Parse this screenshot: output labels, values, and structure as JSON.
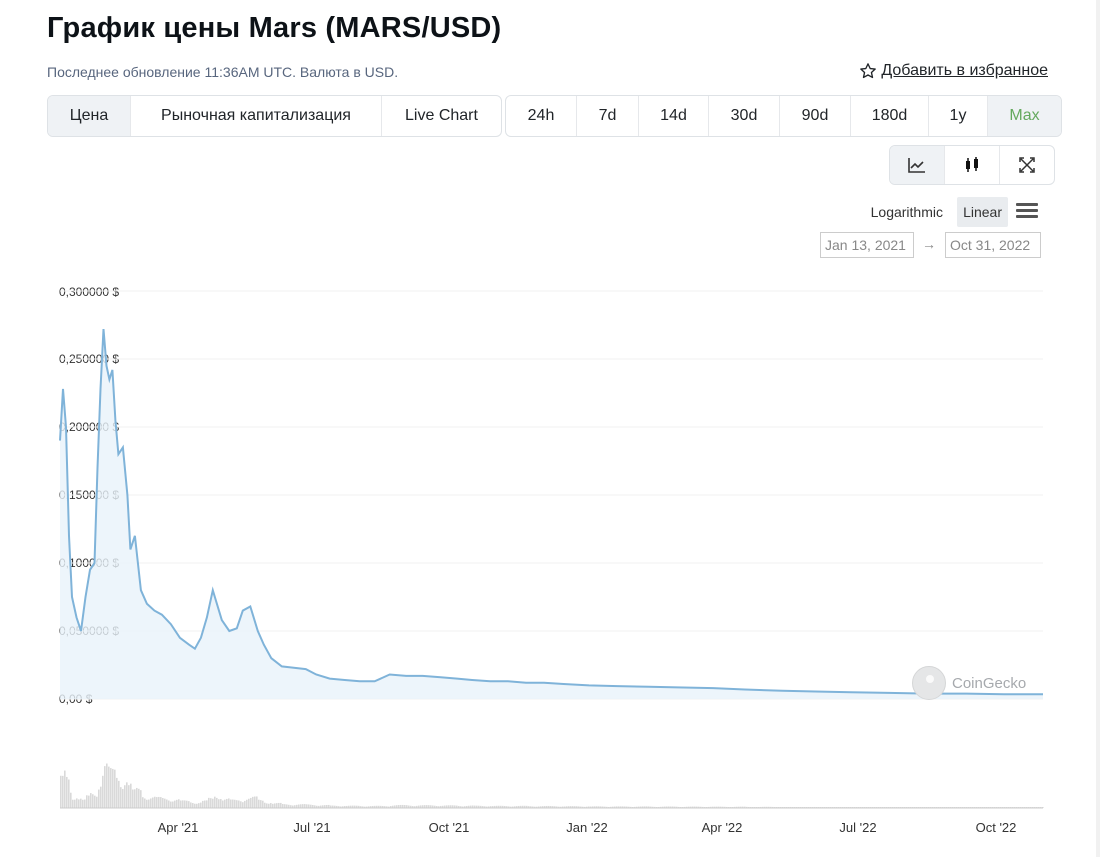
{
  "header": {
    "title": "График цены Mars (MARS/USD)",
    "updated": "Последнее обновление 11:36AM UTC. Валюта в USD.",
    "favorite": "Добавить в избранное"
  },
  "view_tabs": [
    "Цена",
    "Рыночная капитализация",
    "Live Chart"
  ],
  "range_tabs": [
    "24h",
    "7d",
    "14d",
    "30d",
    "90d",
    "180d",
    "1y",
    "Max"
  ],
  "active_view": "Цена",
  "active_range": "Max",
  "chart_modes": [
    "line-chart-icon",
    "candlestick-icon",
    "expand-icon"
  ],
  "scale": {
    "log": "Logarithmic",
    "linear": "Linear",
    "active": "Linear"
  },
  "date_range": {
    "from": "Jan 13, 2021",
    "arrow": "→",
    "to": "Oct 31, 2022"
  },
  "watermark": "CoinGecko",
  "colors": {
    "line": "#7fb3d9",
    "fill": "#e9f2fa",
    "active_range": "#64a95e"
  },
  "chart_data": {
    "type": "line",
    "ylabel": "",
    "xlabel": "",
    "y_ticks": [
      "0,00 $",
      "0,050000 $",
      "0,100000 $",
      "0,150000 $",
      "0,200000 $",
      "0,250000 $",
      "0,300000 $"
    ],
    "ylim": [
      0,
      0.3
    ],
    "x_ticks": [
      "Apr '21",
      "Jul '21",
      "Oct '21",
      "Jan '22",
      "Apr '22",
      "Jul '22",
      "Oct '22"
    ],
    "xlim": [
      "2021-01-13",
      "2022-10-31"
    ],
    "series": [
      {
        "x": [
          "2021-01-13",
          "2021-01-15",
          "2021-01-17",
          "2021-01-19",
          "2021-01-21",
          "2021-01-24",
          "2021-01-27",
          "2021-01-30",
          "2021-02-02",
          "2021-02-05",
          "2021-02-07",
          "2021-02-09",
          "2021-02-11",
          "2021-02-13",
          "2021-02-15",
          "2021-02-17",
          "2021-02-19",
          "2021-02-21",
          "2021-02-24",
          "2021-02-27",
          "2021-03-01",
          "2021-03-04",
          "2021-03-08",
          "2021-03-12",
          "2021-03-17",
          "2021-03-22",
          "2021-03-28",
          "2021-04-03",
          "2021-04-09",
          "2021-04-13",
          "2021-04-17",
          "2021-04-21",
          "2021-04-25",
          "2021-05-01",
          "2021-05-06",
          "2021-05-11",
          "2021-05-15",
          "2021-05-20",
          "2021-05-25",
          "2021-05-29",
          "2021-06-03",
          "2021-06-10",
          "2021-06-18",
          "2021-06-26",
          "2021-07-03",
          "2021-07-12",
          "2021-07-22",
          "2021-08-01",
          "2021-08-11",
          "2021-08-21",
          "2021-09-01",
          "2021-09-12",
          "2021-09-24",
          "2021-10-05",
          "2021-10-15",
          "2021-10-27",
          "2021-11-08",
          "2021-11-20",
          "2021-12-02",
          "2021-12-15",
          "2022-01-01",
          "2022-01-20",
          "2022-02-10",
          "2022-03-01",
          "2022-03-25",
          "2022-04-15",
          "2022-05-10",
          "2022-06-01",
          "2022-06-25",
          "2022-07-20",
          "2022-08-15",
          "2022-09-10",
          "2022-10-05",
          "2022-10-31"
        ],
        "y": [
          0.19,
          0.228,
          0.2,
          0.12,
          0.075,
          0.06,
          0.05,
          0.075,
          0.095,
          0.1,
          0.17,
          0.228,
          0.272,
          0.245,
          0.235,
          0.242,
          0.205,
          0.18,
          0.185,
          0.15,
          0.11,
          0.12,
          0.08,
          0.07,
          0.065,
          0.062,
          0.055,
          0.045,
          0.04,
          0.037,
          0.045,
          0.06,
          0.08,
          0.058,
          0.05,
          0.052,
          0.065,
          0.068,
          0.05,
          0.04,
          0.03,
          0.024,
          0.023,
          0.022,
          0.018,
          0.015,
          0.014,
          0.013,
          0.013,
          0.018,
          0.017,
          0.017,
          0.016,
          0.015,
          0.014,
          0.013,
          0.013,
          0.012,
          0.012,
          0.011,
          0.01,
          0.0095,
          0.009,
          0.0085,
          0.008,
          0.007,
          0.006,
          0.0055,
          0.005,
          0.0045,
          0.004,
          0.004,
          0.0035,
          0.0035
        ]
      }
    ]
  }
}
